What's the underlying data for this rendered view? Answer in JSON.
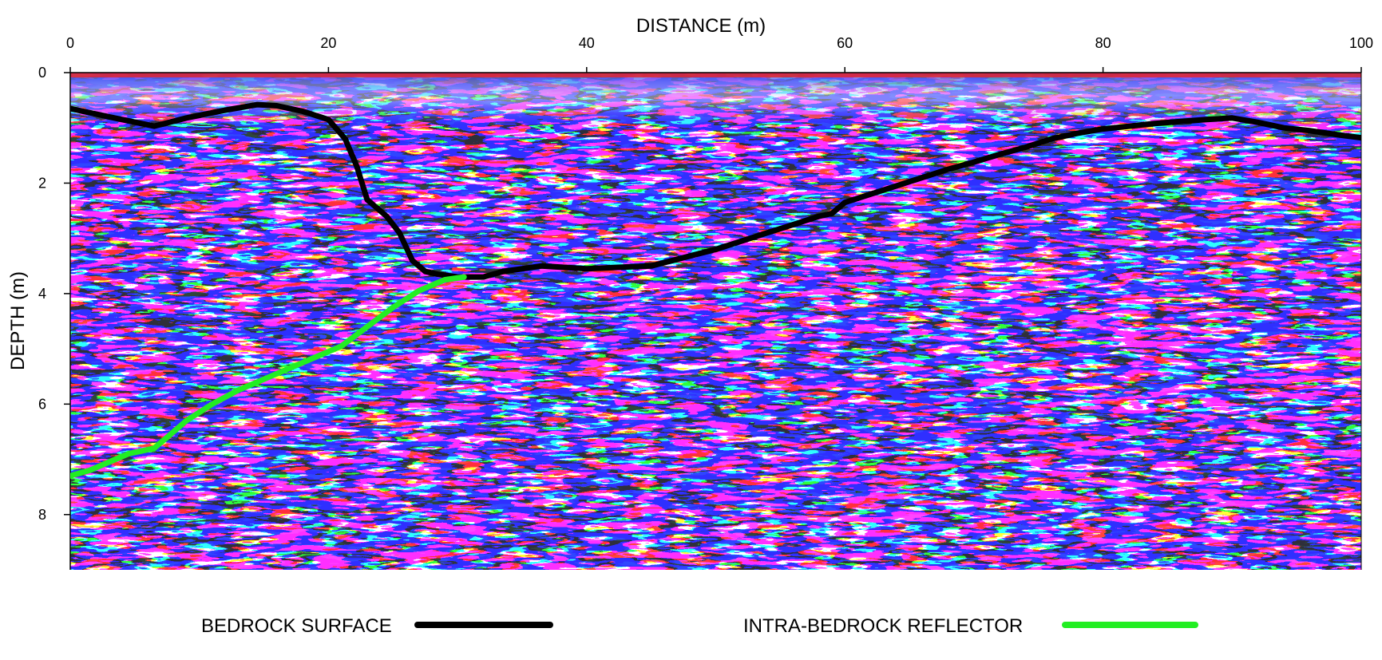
{
  "chart_data": {
    "type": "line",
    "xlabel": "DISTANCE (m)",
    "ylabel": "DEPTH (m)",
    "x_axis_position": "top",
    "y_inverted": true,
    "xlim": [
      0,
      100
    ],
    "ylim": [
      0,
      9
    ],
    "xticks": [
      0,
      20,
      40,
      60,
      80,
      100
    ],
    "yticks": [
      0,
      2,
      4,
      6,
      8
    ],
    "grid": false,
    "background": "ground-penetrating radar profile (red/white/blue wiggle amplitudes)",
    "legend_placement": "bottom",
    "series": [
      {
        "name": "BEDROCK SURFACE",
        "color": "#000000",
        "x": [
          0,
          3,
          6.5,
          9,
          12,
          14.5,
          16,
          18,
          20,
          21.3,
          22.2,
          23,
          24.5,
          25.5,
          26.5,
          27.5,
          28.5,
          30,
          32,
          33.5,
          36.5,
          40,
          45,
          50,
          54,
          56,
          58,
          59,
          60,
          62,
          64,
          66,
          68,
          70,
          72,
          74,
          76,
          78,
          80,
          84,
          88,
          90,
          92,
          94,
          96,
          98,
          100
        ],
        "y": [
          0.65,
          0.8,
          0.97,
          0.82,
          0.68,
          0.58,
          0.6,
          0.7,
          0.85,
          1.2,
          1.7,
          2.3,
          2.6,
          2.9,
          3.4,
          3.6,
          3.65,
          3.7,
          3.7,
          3.6,
          3.5,
          3.55,
          3.5,
          3.2,
          2.9,
          2.75,
          2.6,
          2.55,
          2.35,
          2.2,
          2.05,
          1.9,
          1.75,
          1.62,
          1.48,
          1.35,
          1.2,
          1.1,
          1.02,
          0.92,
          0.85,
          0.82,
          0.9,
          1.0,
          1.05,
          1.12,
          1.18
        ]
      },
      {
        "name": "INTRA-BEDROCK REFLECTOR",
        "color": "#22ee22",
        "x": [
          0,
          1.5,
          3,
          4.5,
          5.5,
          6.5,
          7.5,
          9,
          11,
          13,
          15,
          17,
          19,
          21,
          23,
          25,
          27,
          29,
          30.5
        ],
        "y": [
          7.3,
          7.2,
          7.05,
          6.9,
          6.85,
          6.8,
          6.6,
          6.3,
          6.0,
          5.75,
          5.55,
          5.35,
          5.15,
          4.95,
          4.6,
          4.25,
          3.95,
          3.75,
          3.7
        ]
      }
    ],
    "legend": [
      {
        "label": "BEDROCK SURFACE",
        "color": "#000000"
      },
      {
        "label": "INTRA-BEDROCK REFLECTOR",
        "color": "#22ee22"
      }
    ]
  }
}
